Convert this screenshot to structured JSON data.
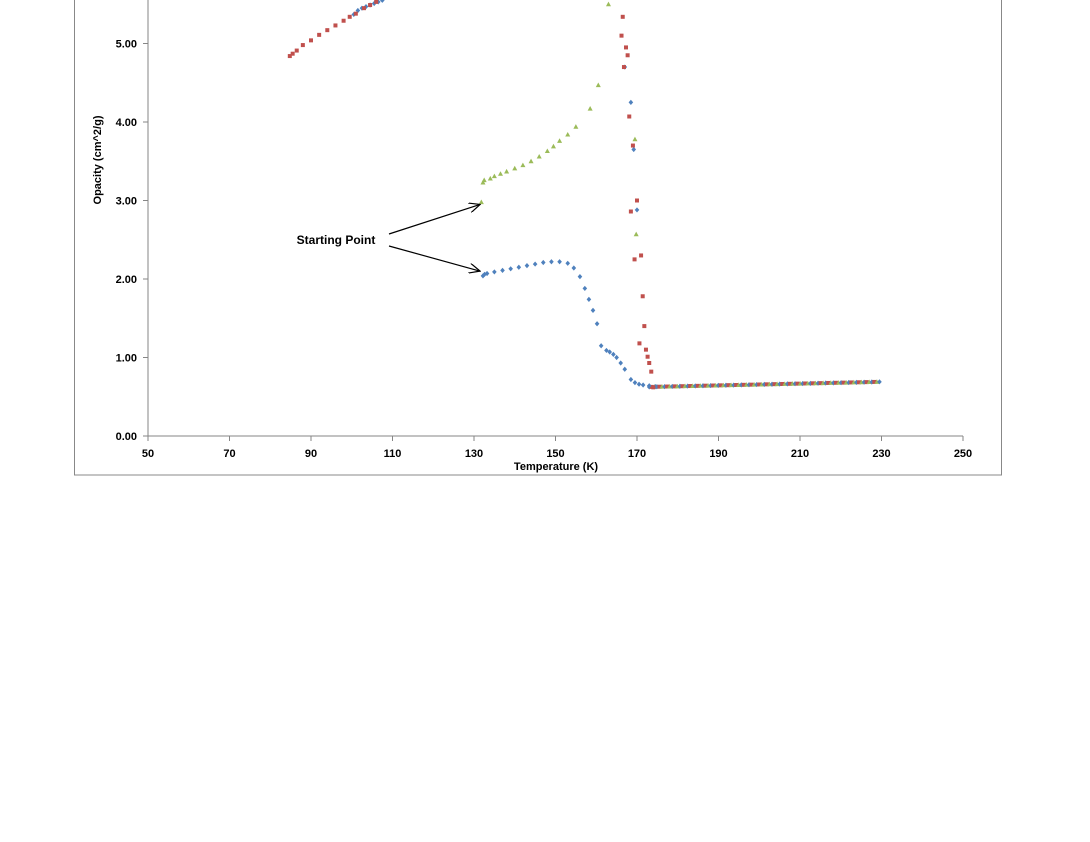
{
  "chart_data": {
    "type": "scatter",
    "xlabel": "Temperature (K)",
    "ylabel": "Opacity (cm^2/g)",
    "xlim": [
      50,
      250
    ],
    "ylim": [
      0,
      5.5
    ],
    "x_ticks": [
      50,
      70,
      90,
      110,
      130,
      150,
      170,
      190,
      210,
      230,
      250
    ],
    "y_ticks": [
      "0.00",
      "1.00",
      "2.00",
      "3.00",
      "4.00",
      "5.00"
    ],
    "grid": false,
    "legend": "none",
    "annotation": {
      "text": "Starting Point",
      "arrow_targets": [
        [
          131.5,
          2.95
        ],
        [
          131.5,
          2.1
        ]
      ]
    },
    "series": [
      {
        "marker": "diamond",
        "color": "#4f81bd",
        "x": [
          100.5,
          101.5,
          102.5,
          103.5,
          104.5,
          105.5,
          106.5,
          107.5,
          132.2,
          132.6,
          133.2,
          135,
          137,
          139,
          141,
          143,
          145,
          147,
          149,
          151,
          153,
          154.5,
          156,
          157.2,
          158.2,
          159.2,
          160.2,
          161.2,
          162.5,
          163.3,
          164.2,
          165,
          166,
          167,
          168.5,
          169.5,
          170.5,
          171.5,
          173,
          174.5,
          167,
          168.5,
          169.2,
          170
        ],
        "y": [
          5.37,
          5.42,
          5.45,
          5.47,
          5.49,
          5.51,
          5.53,
          5.55,
          2.04,
          2.06,
          2.07,
          2.09,
          2.11,
          2.13,
          2.15,
          2.17,
          2.19,
          2.21,
          2.22,
          2.22,
          2.2,
          2.14,
          2.03,
          1.88,
          1.74,
          1.6,
          1.43,
          1.15,
          1.09,
          1.07,
          1.04,
          1.0,
          0.93,
          0.85,
          0.72,
          0.68,
          0.66,
          0.65,
          0.64,
          0.63,
          4.7,
          4.25,
          3.65,
          2.88
        ]
      },
      {
        "marker": "square",
        "color": "#c0504d",
        "x": [
          84.8,
          85.5,
          86.5,
          88,
          90,
          92,
          94,
          96,
          98,
          99.5,
          101,
          103,
          104.5,
          106,
          166.2,
          166.5,
          166.8,
          167.3,
          167.7,
          168.1,
          168.5,
          169,
          169.4,
          170,
          170.6,
          171,
          171.4,
          171.8,
          172.2,
          172.6,
          173,
          173.5,
          174
        ],
        "y": [
          4.84,
          4.87,
          4.91,
          4.98,
          5.04,
          5.11,
          5.17,
          5.23,
          5.29,
          5.34,
          5.38,
          5.45,
          5.49,
          5.53,
          5.1,
          5.34,
          4.7,
          4.95,
          4.85,
          4.07,
          2.86,
          3.7,
          2.25,
          3.0,
          1.18,
          2.3,
          1.78,
          1.4,
          1.1,
          1.01,
          0.93,
          0.82,
          0.62
        ]
      },
      {
        "marker": "triangle",
        "color": "#9bbb59",
        "x": [
          131.8,
          132.2,
          132.5,
          134,
          135,
          136.5,
          138,
          140,
          142,
          144,
          146,
          148,
          149.5,
          151,
          153,
          155,
          158.5,
          160.5,
          163,
          169.5,
          169.8
        ],
        "y": [
          2.98,
          3.23,
          3.26,
          3.28,
          3.31,
          3.34,
          3.37,
          3.41,
          3.45,
          3.5,
          3.56,
          3.63,
          3.69,
          3.76,
          3.84,
          3.94,
          4.17,
          4.47,
          5.5,
          3.78,
          2.57
        ]
      }
    ],
    "plateau": {
      "x_start": 173,
      "x_end": 229.5,
      "y_start": 0.625,
      "y_end": 0.69,
      "colors": [
        "#4f81bd",
        "#c0504d",
        "#9bbb59"
      ]
    }
  }
}
